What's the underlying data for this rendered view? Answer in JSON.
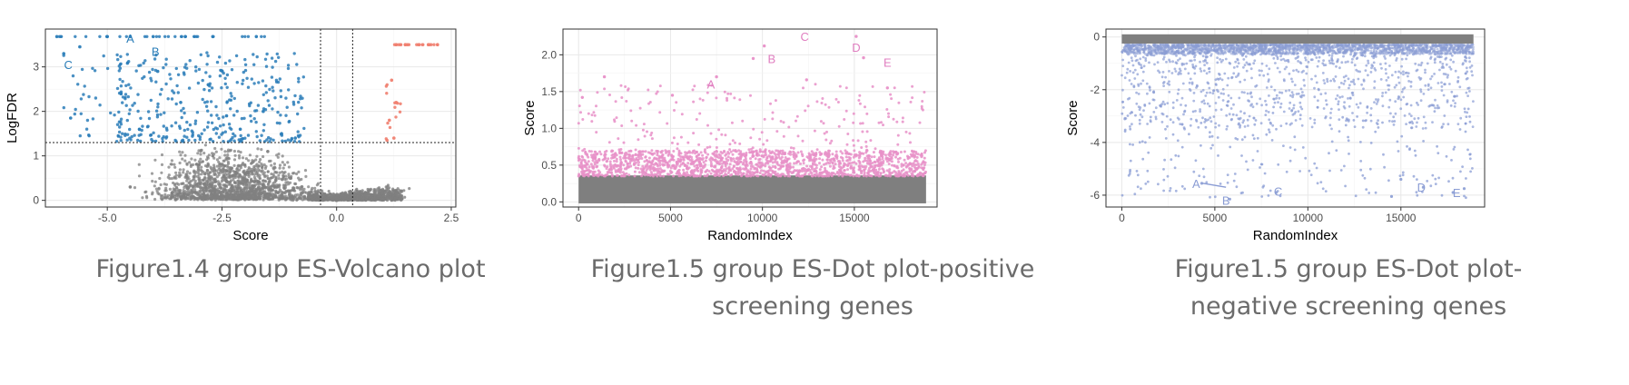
{
  "figures": [
    {
      "caption": "Figure1.4 group ES-Volcano plot"
    },
    {
      "caption": "Figure1.5 group ES-Dot plot-positive screening genes"
    },
    {
      "caption": "Figure1.5 group ES-Dot plot-negative screening qenes"
    }
  ],
  "chart_data": [
    {
      "type": "scatter",
      "subtype": "volcano",
      "title": "",
      "xlabel": "Score",
      "ylabel": "LogFDR",
      "xlim": [
        -6.35,
        2.6
      ],
      "ylim": [
        -0.15,
        3.85
      ],
      "xticks": [
        -5.0,
        -2.5,
        0.0,
        2.5
      ],
      "xtick_labels": [
        "-5.0",
        "-2.5",
        "0.0",
        "2.5"
      ],
      "yticks": [
        0,
        1,
        2,
        3
      ],
      "ytick_labels": [
        "0",
        "1",
        "2",
        "3"
      ],
      "grid": true,
      "legend": "none",
      "threshold_lines": {
        "vertical": [
          -0.35,
          0.35
        ],
        "horizontal": [
          1.3
        ]
      },
      "series": [
        {
          "color": "#2a7db8",
          "approx_point_count": 450,
          "sample_points": [
            [
              -6.1,
              3.68
            ],
            [
              -5.95,
              3.3
            ],
            [
              -5.6,
              3.45
            ],
            [
              -5.0,
              3.68
            ],
            [
              -4.5,
              3.68
            ],
            [
              -4.0,
              3.68
            ],
            [
              -3.3,
              3.68
            ],
            [
              -2.7,
              3.68
            ],
            [
              -1.75,
              3.68
            ],
            [
              -5.8,
              1.85
            ],
            [
              -4.7,
              2.4
            ],
            [
              -3.9,
              2.9
            ],
            [
              -3.4,
              2.2
            ],
            [
              -2.8,
              2.6
            ],
            [
              -2.4,
              1.9
            ],
            [
              -2.1,
              1.6
            ],
            [
              -1.6,
              2.0
            ],
            [
              -1.2,
              1.5
            ],
            [
              -0.9,
              1.4
            ],
            [
              -4.3,
              1.6
            ]
          ]
        },
        {
          "color": "#f08070",
          "approx_point_count": 40,
          "sample_points": [
            [
              1.3,
              3.5
            ],
            [
              1.5,
              3.5
            ],
            [
              1.8,
              3.5
            ],
            [
              2.0,
              3.5
            ],
            [
              2.2,
              3.5
            ],
            [
              1.2,
              2.7
            ],
            [
              1.3,
              2.2
            ],
            [
              1.15,
              1.8
            ],
            [
              1.25,
              1.4
            ],
            [
              1.1,
              1.35
            ]
          ]
        },
        {
          "color": "#808080",
          "approx_point_count": 2500,
          "sample_points": [
            [
              -3.0,
              0.8
            ],
            [
              -2.0,
              0.6
            ],
            [
              -1.0,
              0.5
            ],
            [
              -0.4,
              0.1
            ],
            [
              0.0,
              0.0
            ],
            [
              0.5,
              0.05
            ],
            [
              1.0,
              0.2
            ],
            [
              -4.5,
              0.3
            ],
            [
              -1.5,
              1.1
            ],
            [
              0.3,
              0.2
            ]
          ]
        }
      ],
      "annotations": [
        {
          "text": "A",
          "x": -4.5,
          "y": 3.65,
          "color": "#2a7db8"
        },
        {
          "text": "B",
          "x": -3.95,
          "y": 3.35,
          "color": "#2a7db8"
        },
        {
          "text": "C",
          "x": -5.85,
          "y": 3.05,
          "color": "#2a7db8"
        }
      ]
    },
    {
      "type": "scatter",
      "title": "",
      "xlabel": "RandomIndex",
      "ylabel": "Score",
      "xlim": [
        -850,
        19500
      ],
      "ylim": [
        -0.07,
        2.35
      ],
      "xticks": [
        0,
        5000,
        10000,
        15000
      ],
      "xtick_labels": [
        "0",
        "5000",
        "10000",
        "15000"
      ],
      "yticks": [
        0.0,
        0.5,
        1.0,
        1.5,
        2.0
      ],
      "ytick_labels": [
        "0.0",
        "0.5",
        "1.0",
        "1.5",
        "2.0"
      ],
      "grid": true,
      "legend": "none",
      "series": [
        {
          "color": "#e890c8",
          "approx_point_count": 3500,
          "value_range": [
            0.35,
            2.25
          ],
          "sample_points": [
            [
              200,
              1.42
            ],
            [
              1400,
              1.7
            ],
            [
              5100,
              1.45
            ],
            [
              7500,
              1.7
            ],
            [
              9500,
              1.95
            ],
            [
              10100,
              2.12
            ],
            [
              12400,
              1.66
            ],
            [
              15100,
              2.25
            ],
            [
              15500,
              1.96
            ],
            [
              16800,
              1.55
            ]
          ]
        },
        {
          "color": "#7f7f7f",
          "approx_point_count": 15000,
          "value_range": [
            0.0,
            0.35
          ]
        }
      ],
      "annotations": [
        {
          "text": "A",
          "x": 7200,
          "y": 1.6,
          "color": "#e07ec0"
        },
        {
          "text": "B",
          "x": 10500,
          "y": 1.95,
          "color": "#e07ec0"
        },
        {
          "text": "C",
          "x": 12300,
          "y": 2.25,
          "color": "#e07ec0"
        },
        {
          "text": "D",
          "x": 15100,
          "y": 2.1,
          "color": "#e07ec0"
        },
        {
          "text": "E",
          "x": 16800,
          "y": 1.9,
          "color": "#e07ec0"
        }
      ]
    },
    {
      "type": "scatter",
      "title": "",
      "xlabel": "RandomIndex",
      "ylabel": "Score",
      "xlim": [
        -850,
        19500
      ],
      "ylim": [
        -6.45,
        0.3
      ],
      "xticks": [
        0,
        5000,
        10000,
        15000
      ],
      "xtick_labels": [
        "0",
        "5000",
        "10000",
        "15000"
      ],
      "yticks": [
        0,
        -2,
        -4,
        -6
      ],
      "ytick_labels": [
        "0",
        "-2",
        "-4",
        "-6"
      ],
      "grid": true,
      "legend": "none",
      "series": [
        {
          "color": "#8a9cd4",
          "approx_point_count": 3500,
          "value_range": [
            -6.2,
            -0.2
          ],
          "sample_points": [
            [
              4300,
              -5.55
            ],
            [
              5800,
              -6.15
            ],
            [
              8300,
              -5.9
            ],
            [
              14500,
              -6.05
            ],
            [
              15000,
              -5.4
            ],
            [
              16200,
              -5.7
            ],
            [
              17800,
              -5.9
            ],
            [
              18400,
              -5.75
            ]
          ]
        },
        {
          "color": "#7f7f7f",
          "approx_point_count": 15000,
          "value_range": [
            -0.2,
            0.0
          ]
        }
      ],
      "annotations": [
        {
          "text": "A",
          "x": 4000,
          "y": -5.55,
          "color": "#8a9cd4",
          "leader_to": [
            5600,
            -5.7
          ]
        },
        {
          "text": "B",
          "x": 5600,
          "y": -6.2,
          "color": "#8a9cd4"
        },
        {
          "text": "C",
          "x": 8400,
          "y": -5.85,
          "color": "#8a9cd4"
        },
        {
          "text": "D",
          "x": 16100,
          "y": -5.7,
          "color": "#8a9cd4"
        },
        {
          "text": "E",
          "x": 18000,
          "y": -5.9,
          "color": "#8a9cd4"
        }
      ]
    }
  ]
}
